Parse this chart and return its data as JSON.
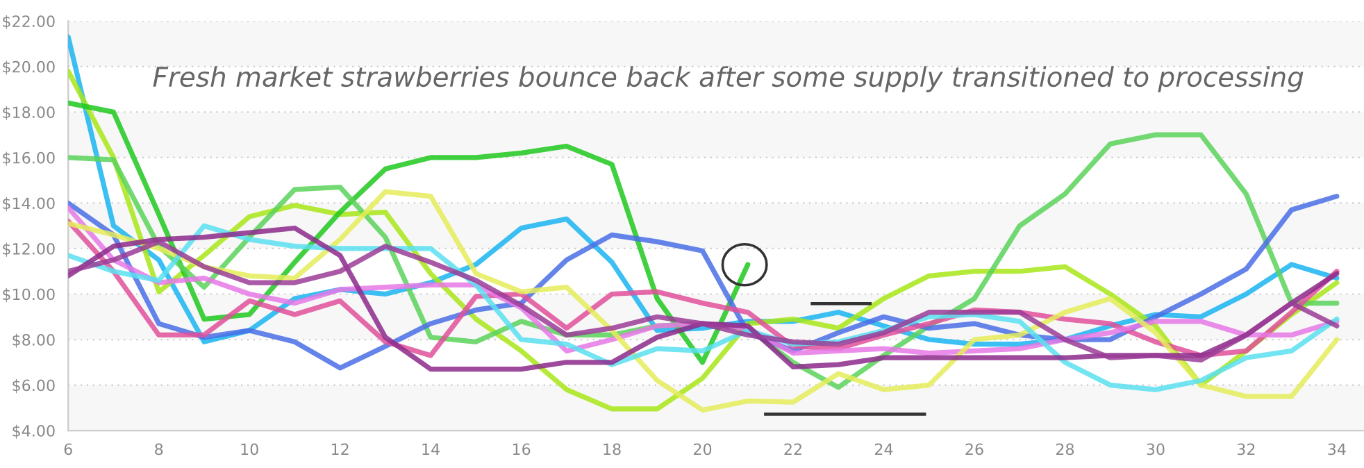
{
  "chart_data": {
    "type": "line",
    "annotations": [
      "Fresh market strawberries bounce back after some supply transitioned to processing"
    ],
    "x": [
      6,
      7,
      8,
      9,
      10,
      11,
      12,
      13,
      14,
      15,
      16,
      17,
      18,
      19,
      20,
      21,
      22,
      23,
      24,
      25,
      26,
      27,
      28,
      29,
      30,
      31,
      32,
      33,
      34
    ],
    "series": [
      {
        "color": "#1ab4f0",
        "values": [
          21.3,
          13.0,
          11.5,
          7.9,
          8.4,
          9.8,
          10.2,
          10.0,
          10.5,
          11.3,
          12.9,
          13.3,
          11.4,
          8.4,
          8.5,
          8.8,
          8.8,
          9.2,
          8.6,
          8.0,
          7.8,
          7.8,
          8.0,
          8.6,
          9.1,
          9.0,
          10.0,
          11.3,
          10.7
        ]
      },
      {
        "color": "#a8e619",
        "values": [
          19.8,
          16.0,
          10.1,
          11.7,
          13.4,
          13.9,
          13.5,
          13.6,
          10.9,
          8.9,
          7.5,
          5.8,
          4.95,
          4.95,
          6.3,
          8.7,
          8.9,
          8.5,
          9.8,
          10.8,
          11.0,
          11.0,
          11.2,
          10.0,
          8.6,
          6.0,
          7.5,
          9.1,
          10.5
        ]
      },
      {
        "color": "#1ec81e",
        "values": [
          18.4,
          18.0,
          13.5,
          8.9,
          9.1,
          11.4,
          13.6,
          15.5,
          16.0,
          16.0,
          16.2,
          16.5,
          15.7,
          9.8,
          7.0,
          11.3,
          null,
          null,
          null,
          null,
          null,
          null,
          null,
          null,
          null,
          null,
          null,
          null,
          null
        ]
      },
      {
        "color": "#5ad25a",
        "values": [
          16.0,
          15.9,
          12.1,
          10.3,
          12.5,
          14.6,
          14.7,
          12.5,
          8.1,
          7.9,
          8.8,
          8.2,
          8.2,
          8.6,
          8.7,
          8.5,
          7.0,
          5.9,
          7.3,
          8.6,
          9.8,
          13.0,
          14.4,
          16.6,
          17.0,
          17.0,
          14.4,
          9.6,
          9.6
        ]
      },
      {
        "color": "#4a6ee6",
        "values": [
          14.0,
          12.6,
          8.7,
          8.1,
          8.4,
          7.9,
          6.75,
          7.7,
          8.7,
          9.3,
          9.6,
          11.5,
          12.6,
          12.3,
          11.9,
          8.3,
          7.5,
          8.3,
          9.0,
          8.5,
          8.7,
          8.2,
          8.0,
          8.0,
          9.0,
          10.0,
          11.1,
          13.7,
          14.3
        ]
      },
      {
        "color": "#e0509a",
        "values": [
          13.2,
          11.0,
          8.2,
          8.2,
          9.7,
          9.1,
          9.7,
          7.9,
          7.3,
          9.9,
          10.0,
          8.5,
          10.0,
          10.1,
          9.6,
          9.2,
          7.7,
          7.6,
          8.2,
          8.7,
          9.3,
          9.2,
          8.9,
          8.7,
          7.9,
          7.3,
          7.5,
          9.2,
          11.0
        ]
      },
      {
        "color": "#e678e6",
        "values": [
          13.8,
          11.5,
          10.5,
          10.7,
          10.0,
          9.6,
          10.2,
          10.3,
          10.4,
          10.4,
          9.4,
          7.5,
          8.0,
          8.6,
          8.7,
          8.5,
          7.4,
          7.5,
          7.6,
          7.4,
          7.5,
          7.6,
          8.0,
          8.3,
          8.8,
          8.8,
          8.2,
          8.2,
          8.8
        ]
      },
      {
        "color": "#e4ec5a",
        "values": [
          13.1,
          12.6,
          12.0,
          11.2,
          10.8,
          10.7,
          12.4,
          14.5,
          14.3,
          10.9,
          10.1,
          10.3,
          8.4,
          6.2,
          4.9,
          5.3,
          5.25,
          6.5,
          5.8,
          6.0,
          8.0,
          8.2,
          9.2,
          9.8,
          8.3,
          6.0,
          5.5,
          5.5,
          8.0
        ]
      },
      {
        "color": "#5ae0f0",
        "values": [
          11.7,
          11.0,
          10.6,
          13.0,
          12.4,
          12.1,
          12.0,
          12.0,
          12.0,
          10.4,
          8.0,
          7.8,
          6.9,
          7.6,
          7.5,
          8.4,
          7.8,
          7.9,
          8.4,
          9.0,
          9.1,
          8.8,
          7.0,
          6.0,
          5.8,
          6.2,
          7.2,
          7.5,
          8.9
        ]
      },
      {
        "color": "#8c2a8c",
        "values": [
          10.8,
          12.1,
          12.4,
          12.5,
          12.7,
          12.9,
          11.7,
          8.1,
          6.7,
          6.7,
          6.7,
          7.0,
          7.0,
          8.1,
          8.7,
          8.6,
          6.8,
          6.9,
          7.2,
          7.2,
          7.2,
          7.2,
          7.2,
          7.3,
          7.3,
          7.3,
          8.2,
          9.6,
          10.9
        ]
      },
      {
        "color": "#9a3c96",
        "values": [
          11.0,
          11.5,
          12.3,
          11.2,
          10.5,
          10.5,
          11.0,
          12.1,
          11.4,
          10.6,
          9.5,
          8.2,
          8.5,
          9.0,
          8.7,
          8.2,
          7.9,
          7.8,
          8.3,
          9.2,
          9.2,
          9.2,
          8.0,
          7.2,
          7.3,
          7.1,
          8.2,
          9.6,
          8.6
        ]
      }
    ],
    "xlim": [
      6,
      34.6
    ],
    "xticks": [
      6,
      8,
      10,
      12,
      14,
      16,
      18,
      20,
      22,
      24,
      26,
      28,
      30,
      32,
      34
    ],
    "ylim": [
      4,
      22
    ],
    "yticks": [
      {
        "value": 4,
        "label": "$4.00"
      },
      {
        "value": 6,
        "label": "$6.00"
      },
      {
        "value": 8,
        "label": "$8.00"
      },
      {
        "value": 10,
        "label": "$10.00"
      },
      {
        "value": 12,
        "label": "$12.00"
      },
      {
        "value": 14,
        "label": "$14.00"
      },
      {
        "value": 16,
        "label": "$16.00"
      },
      {
        "value": 18,
        "label": "$18.00"
      },
      {
        "value": 20,
        "label": "$20.00"
      },
      {
        "value": 22,
        "label": "$22.00"
      }
    ],
    "bands": [
      {
        "axis": "y",
        "from": 4,
        "to": 6,
        "color": "#f7f7f7"
      },
      {
        "axis": "y",
        "from": 8,
        "to": 10,
        "color": "#f7f7f7"
      },
      {
        "axis": "y",
        "from": 12,
        "to": 14,
        "color": "#f7f7f7"
      },
      {
        "axis": "y",
        "from": 16,
        "to": 18,
        "color": "#f7f7f7"
      },
      {
        "axis": "y",
        "from": 20,
        "to": 22,
        "color": "#f7f7f7"
      }
    ],
    "grid": "y",
    "legend": false,
    "line_style": "solid",
    "marker": "none"
  }
}
